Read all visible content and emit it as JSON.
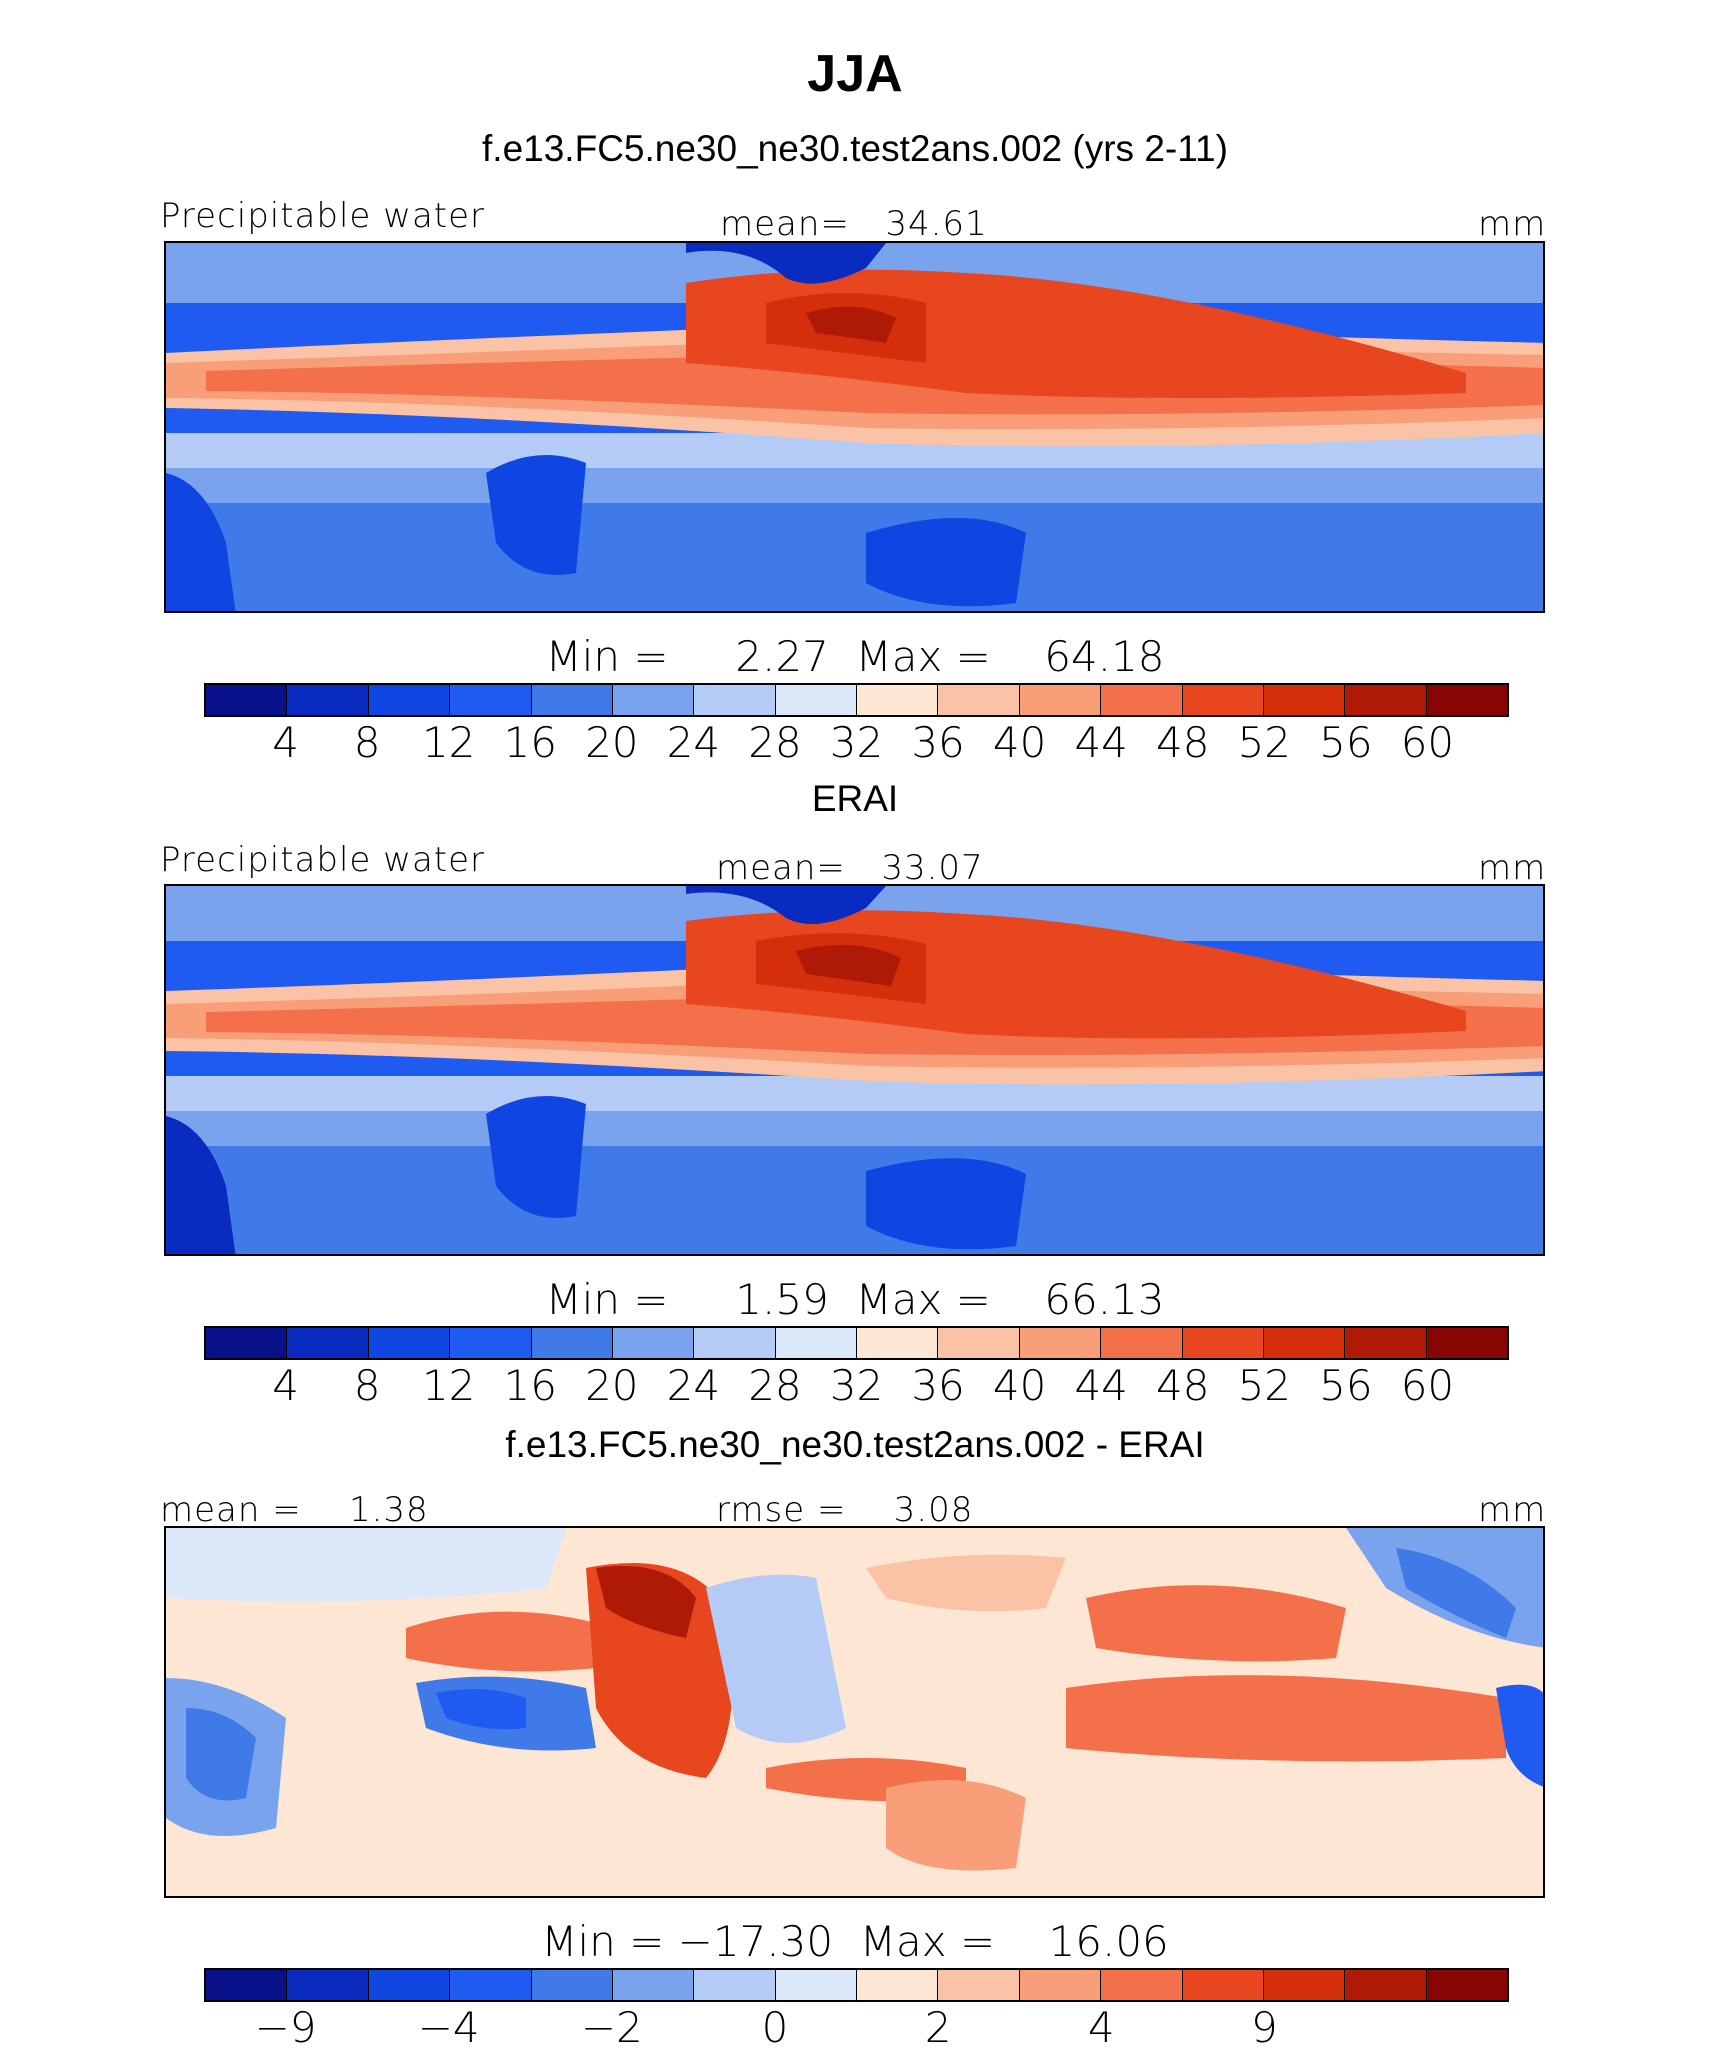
{
  "season": "JJA",
  "panels": [
    {
      "title": "f.e13.FC5.ne30_ne30.test2ans.002 (yrs 2-11)",
      "left_label": "Precipitable water",
      "center_label": "mean=   34.61",
      "units": "mm",
      "minmax": "Min =     2.27  Max =    64.18",
      "ticks": [
        "4",
        "8",
        "12",
        "16",
        "20",
        "24",
        "28",
        "32",
        "36",
        "40",
        "44",
        "48",
        "52",
        "56",
        "60"
      ]
    },
    {
      "title": "ERAI",
      "left_label": "Precipitable water",
      "center_label": "mean=   33.07",
      "units": "mm",
      "minmax": "Min =     1.59  Max =    66.13",
      "ticks": [
        "4",
        "8",
        "12",
        "16",
        "20",
        "24",
        "28",
        "32",
        "36",
        "40",
        "44",
        "48",
        "52",
        "56",
        "60"
      ]
    },
    {
      "title": "f.e13.FC5.ne30_ne30.test2ans.002 - ERAI",
      "left_label": "mean =    1.38",
      "center_label": "rmse =    3.08",
      "units": "mm",
      "minmax": "Min = −17.30  Max =    16.06",
      "ticks": [
        "−9",
        "",
        "−4",
        "",
        "−2",
        "",
        "0",
        "",
        "2",
        "",
        "4",
        "",
        "9",
        "",
        ""
      ]
    }
  ],
  "colors": {
    "palette": [
      "#08118a",
      "#0a2bbf",
      "#0f45e0",
      "#1f5bf0",
      "#3f7ae8",
      "#7aa3ee",
      "#b4ccf5",
      "#dbe8f9",
      "#fde6d4",
      "#fbc3a6",
      "#f89e78",
      "#f4704a",
      "#e8461f",
      "#d42e0b",
      "#ae1a06",
      "#870601"
    ]
  },
  "chart_data": [
    {
      "type": "heatmap",
      "title": "f.e13.FC5.ne30_ne30.test2ans.002 (yrs 2-11)",
      "variable": "Precipitable water",
      "units": "mm",
      "mean": 34.61,
      "min": 2.27,
      "max": 64.18,
      "contour_levels": [
        4,
        8,
        12,
        16,
        20,
        24,
        28,
        32,
        36,
        40,
        44,
        48,
        52,
        56,
        60
      ]
    },
    {
      "type": "heatmap",
      "title": "ERAI",
      "variable": "Precipitable water",
      "units": "mm",
      "mean": 33.07,
      "min": 1.59,
      "max": 66.13,
      "contour_levels": [
        4,
        8,
        12,
        16,
        20,
        24,
        28,
        32,
        36,
        40,
        44,
        48,
        52,
        56,
        60
      ]
    },
    {
      "type": "heatmap",
      "title": "f.e13.FC5.ne30_ne30.test2ans.002 - ERAI",
      "units": "mm",
      "mean": 1.38,
      "rmse": 3.08,
      "min": -17.3,
      "max": 16.06,
      "contour_labels": [
        -9,
        -4,
        -2,
        0,
        2,
        4,
        9
      ]
    }
  ]
}
